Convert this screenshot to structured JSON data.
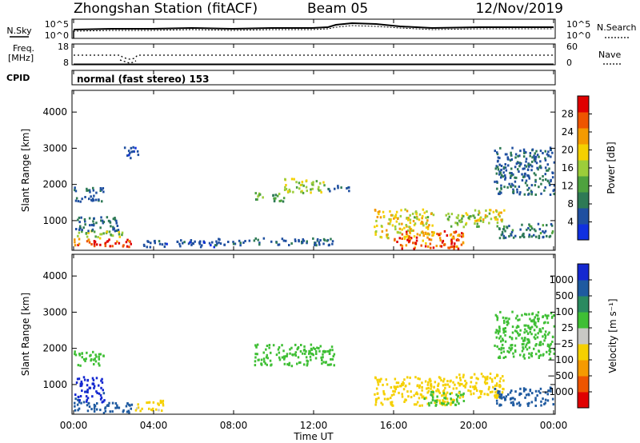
{
  "header": {
    "station": "Zhongshan Station (fitACF)",
    "beam": "Beam 05",
    "date": "12/Nov/2019"
  },
  "noise_panel": {
    "left_label": "N.Sky",
    "right_label": "N.Search",
    "left_ticks": [
      "10^5",
      "10^0"
    ],
    "right_ticks": [
      "10^5",
      "10^0"
    ]
  },
  "freq_panel": {
    "left_label_1": "Freq.",
    "left_label_2": "[MHz]",
    "right_label": "Nave",
    "left_ticks": [
      "18",
      "8"
    ],
    "right_ticks": [
      "60",
      "0"
    ]
  },
  "cpid_panel": {
    "label": "CPID",
    "text": "normal (fast stereo) 153"
  },
  "x_axis": {
    "label": "Time UT",
    "ticks": [
      "00:00",
      "04:00",
      "08:00",
      "12:00",
      "16:00",
      "20:00",
      "00:00"
    ]
  },
  "power_panel": {
    "ylabel": "Slant Range [km]",
    "yticks": [
      "1000",
      "2000",
      "3000",
      "4000"
    ],
    "cbar_label": "Power [dB]",
    "cbar_ticks": [
      "4",
      "8",
      "12",
      "16",
      "20",
      "24",
      "28"
    ],
    "cbar_colors": [
      "#1030e0",
      "#1f4fa0",
      "#2e7a55",
      "#4ea23e",
      "#9ccd3a",
      "#f4d000",
      "#f49a00",
      "#ee5500",
      "#e00000"
    ]
  },
  "velocity_panel": {
    "ylabel": "Slant Range [km]",
    "yticks": [
      "1000",
      "2000",
      "3000",
      "4000"
    ],
    "cbar_label": "Velocity [m s⁻¹]",
    "cbar_ticks": [
      "1000",
      "500",
      "100",
      "25",
      "−25",
      "−100",
      "−500",
      "−1000"
    ],
    "cbar_colors": [
      "#1428d0",
      "#1e5aa0",
      "#2a8a60",
      "#3fbf35",
      "#c8c8c4",
      "#f5d000",
      "#f59a00",
      "#ee5500",
      "#e00000"
    ]
  },
  "chart_data": [
    {
      "type": "heatmap",
      "title": "Power",
      "xlabel": "Time UT",
      "ylabel": "Slant Range [km]",
      "xlim": [
        "00:00",
        "24:00"
      ],
      "ylim": [
        180,
        4600
      ],
      "zlabel": "Power [dB]",
      "zlim": [
        0,
        30
      ],
      "patches": [
        {
          "t": [
            0.0,
            3.0
          ],
          "r": [
            250,
            480
          ],
          "z": 26
        },
        {
          "t": [
            0.1,
            2.5
          ],
          "r": [
            500,
            700
          ],
          "z": 14
        },
        {
          "t": [
            0.0,
            2.2
          ],
          "r": [
            700,
            1100
          ],
          "z": 6
        },
        {
          "t": [
            0.0,
            1.5
          ],
          "r": [
            1500,
            1900
          ],
          "z": 6
        },
        {
          "t": [
            3.0,
            7.0
          ],
          "r": [
            250,
            450
          ],
          "z": 5
        },
        {
          "t": [
            2.5,
            3.2
          ],
          "r": [
            2700,
            3050
          ],
          "z": 4
        },
        {
          "t": [
            9.0,
            10.5
          ],
          "r": [
            1500,
            1750
          ],
          "z": 12
        },
        {
          "t": [
            10.5,
            12.5
          ],
          "r": [
            1750,
            2150
          ],
          "z": 15
        },
        {
          "t": [
            12.5,
            13.8
          ],
          "r": [
            1800,
            1950
          ],
          "z": 6
        },
        {
          "t": [
            7.0,
            13.0
          ],
          "r": [
            300,
            500
          ],
          "z": 6
        },
        {
          "t": [
            15.0,
            18.0
          ],
          "r": [
            500,
            1300
          ],
          "z": 18
        },
        {
          "t": [
            16.0,
            19.5
          ],
          "r": [
            200,
            700
          ],
          "z": 24
        },
        {
          "t": [
            18.5,
            20.5
          ],
          "r": [
            800,
            1200
          ],
          "z": 14
        },
        {
          "t": [
            20.0,
            21.5
          ],
          "r": [
            900,
            1300
          ],
          "z": 18
        },
        {
          "t": [
            21.0,
            24.0
          ],
          "r": [
            500,
            900
          ],
          "z": 8
        },
        {
          "t": [
            21.0,
            24.0
          ],
          "r": [
            1700,
            3000
          ],
          "z": 6
        }
      ]
    },
    {
      "type": "heatmap",
      "title": "Velocity",
      "xlabel": "Time UT",
      "ylabel": "Slant Range [km]",
      "xlim": [
        "00:00",
        "24:00"
      ],
      "ylim": [
        180,
        4600
      ],
      "zlabel": "Velocity [m s⁻¹]",
      "zlim": [
        -1000,
        1000
      ],
      "patches": [
        {
          "t": [
            0.0,
            3.0
          ],
          "r": [
            200,
            500
          ],
          "z": 150
        },
        {
          "t": [
            0.0,
            1.5
          ],
          "r": [
            500,
            1200
          ],
          "z": 600
        },
        {
          "t": [
            3.0,
            4.5
          ],
          "r": [
            250,
            550
          ],
          "z": -120
        },
        {
          "t": [
            0.0,
            1.5
          ],
          "r": [
            1500,
            1900
          ],
          "z": 0
        },
        {
          "t": [
            9.0,
            13.0
          ],
          "r": [
            1500,
            2100
          ],
          "z": 0
        },
        {
          "t": [
            15.0,
            19.0
          ],
          "r": [
            400,
            1200
          ],
          "z": -200
        },
        {
          "t": [
            17.5,
            19.5
          ],
          "r": [
            400,
            800
          ],
          "z": 0
        },
        {
          "t": [
            19.0,
            21.5
          ],
          "r": [
            600,
            1300
          ],
          "z": -150
        },
        {
          "t": [
            21.0,
            24.0
          ],
          "r": [
            1700,
            3000
          ],
          "z": 0
        },
        {
          "t": [
            21.0,
            24.0
          ],
          "r": [
            400,
            900
          ],
          "z": 300
        }
      ]
    }
  ]
}
